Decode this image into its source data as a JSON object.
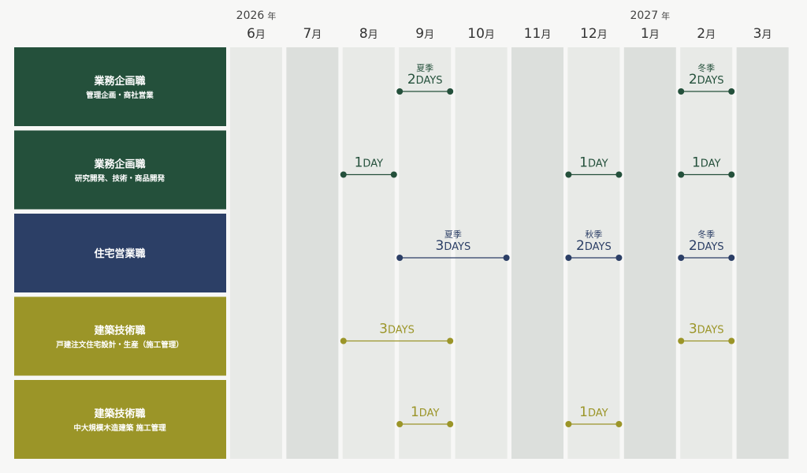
{
  "years": [
    {
      "year": "2026",
      "unit": "年",
      "month": 0
    },
    {
      "year": "2027",
      "unit": "年",
      "month": 7
    }
  ],
  "months": [
    {
      "num": "6",
      "unit": "月",
      "color": "#e8eae7"
    },
    {
      "num": "7",
      "unit": "月",
      "color": "#dcdfdc"
    },
    {
      "num": "8",
      "unit": "月",
      "color": "#e8eae7"
    },
    {
      "num": "9",
      "unit": "月",
      "color": "#e8eae7"
    },
    {
      "num": "10",
      "unit": "月",
      "color": "#e8eae7"
    },
    {
      "num": "11",
      "unit": "月",
      "color": "#dcdfdc"
    },
    {
      "num": "12",
      "unit": "月",
      "color": "#e8eae7"
    },
    {
      "num": "1",
      "unit": "月",
      "color": "#dcdfdc"
    },
    {
      "num": "2",
      "unit": "月",
      "color": "#e8eae7"
    },
    {
      "num": "3",
      "unit": "月",
      "color": "#dcdfdc"
    }
  ],
  "rows": [
    {
      "title": "業務企画職",
      "subtitle": "管理企画・商社営業",
      "color": "#24503b",
      "events": [
        {
          "season": "夏季",
          "count": "2",
          "unit": "DAYS",
          "from": 3,
          "to": 3
        },
        {
          "season": "冬季",
          "count": "2",
          "unit": "DAYS",
          "from": 8,
          "to": 8
        }
      ]
    },
    {
      "title": "業務企画職",
      "subtitle": "研究開発、技術・商品開発",
      "color": "#24503b",
      "events": [
        {
          "count": "1",
          "unit": "DAY",
          "from": 2,
          "to": 2
        },
        {
          "count": "1",
          "unit": "DAY",
          "from": 6,
          "to": 6
        },
        {
          "count": "1",
          "unit": "DAY",
          "from": 8,
          "to": 8
        }
      ]
    },
    {
      "title": "住宅営業職",
      "color": "#2c3f66",
      "events": [
        {
          "season": "夏季",
          "count": "3",
          "unit": "DAYS",
          "from": 3,
          "to": 4
        },
        {
          "season": "秋季",
          "count": "2",
          "unit": "DAYS",
          "from": 6,
          "to": 6
        },
        {
          "season": "冬季",
          "count": "2",
          "unit": "DAYS",
          "from": 8,
          "to": 8
        }
      ]
    },
    {
      "title": "建築技術職",
      "subtitle": "戸建注文住宅設計・生産（施工管理）",
      "color": "#9b9528",
      "events": [
        {
          "count": "3",
          "unit": "DAYS",
          "from": 2,
          "to": 3
        },
        {
          "count": "3",
          "unit": "DAYS",
          "from": 8,
          "to": 8
        }
      ]
    },
    {
      "title": "建築技術職",
      "subtitle": "中大規模木造建築 施工管理",
      "color": "#9b9528",
      "events": [
        {
          "count": "1",
          "unit": "DAY",
          "from": 3,
          "to": 3
        },
        {
          "count": "1",
          "unit": "DAY",
          "from": 6,
          "to": 6
        }
      ]
    }
  ]
}
